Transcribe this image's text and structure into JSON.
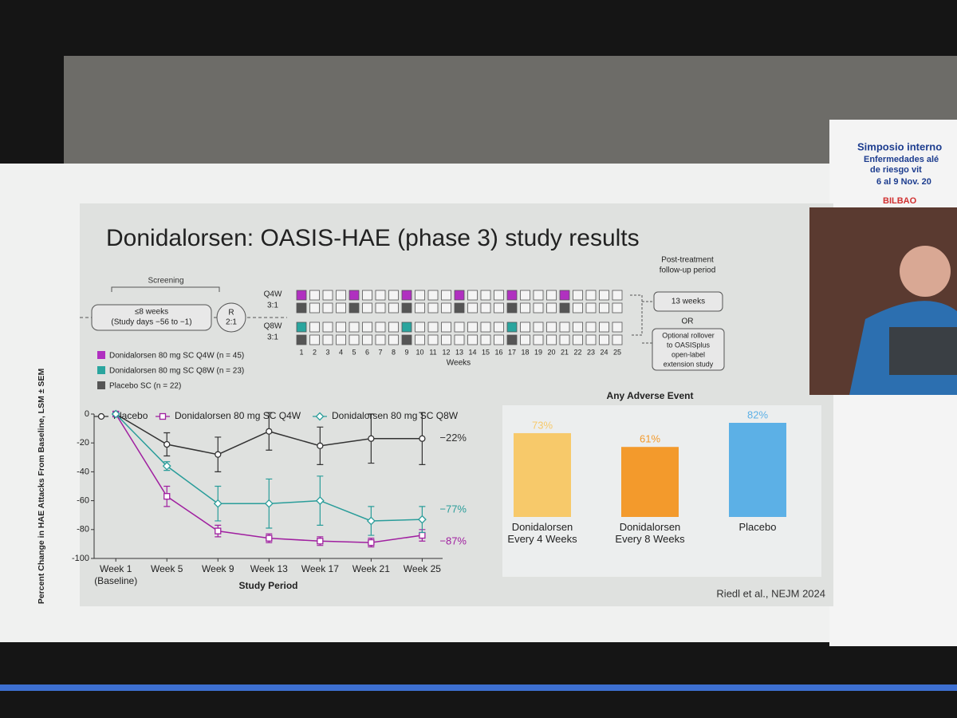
{
  "slide": {
    "title": "Donidalorsen: OASIS-HAE (phase 3) study results",
    "citation": "Riedl et al., NEJM 2024"
  },
  "venue": [
    "Simposio interno",
    "Enfermedades alé",
    "de riesgo vit",
    "6 al 9 Nov. 20",
    "BILBAO"
  ],
  "design": {
    "screening_label": "Screening",
    "screening_box": [
      "≤8 weeks",
      "(Study days −56 to −1)"
    ],
    "randomization": [
      "R",
      "2:1"
    ],
    "arms": [
      {
        "label": "Q4W",
        "ratio": "3:1",
        "active_color": "#b030c0",
        "dose_weeks": [
          1,
          5,
          9,
          13,
          17,
          21
        ]
      },
      {
        "label": "Q8W",
        "ratio": "3:1",
        "active_color": "#2aa59e",
        "dose_weeks": [
          1,
          9,
          17
        ]
      }
    ],
    "placebo_color": "#555555",
    "week_numbers": [
      1,
      2,
      3,
      4,
      5,
      6,
      7,
      8,
      9,
      10,
      11,
      12,
      13,
      14,
      15,
      16,
      17,
      18,
      19,
      20,
      21,
      22,
      23,
      24,
      25
    ],
    "weeks_label": "Weeks",
    "followup_label": [
      "Post-treatment",
      "follow-up period"
    ],
    "followup_box": "13 weeks",
    "or_label": "OR",
    "rollover_box": [
      "Optional rollover",
      "to OASISplus",
      "open-label",
      "extension study"
    ],
    "legend": [
      {
        "text": "Donidalorsen 80 mg SC Q4W (n = 45)",
        "color": "#b030c0"
      },
      {
        "text": "Donidalorsen 80 mg SC Q8W (n = 23)",
        "color": "#2aa59e"
      },
      {
        "text": "Placebo SC (n = 22)",
        "color": "#555555"
      }
    ]
  },
  "chart_data": [
    {
      "type": "line",
      "ylabel": "Percent Change in HAE Attacks From Baseline, LSM ± SEM",
      "xlabel": "Study Period",
      "x": [
        1,
        5,
        9,
        13,
        17,
        21,
        25
      ],
      "xlim": [
        -0.7,
        26.6
      ],
      "xticks": [
        {
          "value": 1,
          "label": "Week 1\n(Baseline)"
        },
        {
          "value": 5,
          "label": "Week 5"
        },
        {
          "value": 9,
          "label": "Week 9"
        },
        {
          "value": 13,
          "label": "Week 13"
        },
        {
          "value": 17,
          "label": "Week 17"
        },
        {
          "value": 21,
          "label": "Week 21"
        },
        {
          "value": 25,
          "label": "Week 25"
        }
      ],
      "ylim": [
        -100,
        0
      ],
      "yticks": [
        0,
        -20,
        -40,
        -60,
        -80,
        -100
      ],
      "series": [
        {
          "name": "Placebo",
          "color": "#333333",
          "marker": "circle",
          "values": [
            0,
            -21,
            -28,
            -12,
            -22,
            -17,
            -17
          ],
          "errors": [
            null,
            8,
            12,
            13,
            13,
            17,
            18
          ],
          "end_label": "−22%"
        },
        {
          "name": "Donidalorsen 80 mg SC Q4W",
          "color": "#a020a0",
          "marker": "square",
          "values": [
            0,
            -57,
            -81,
            -86,
            -88,
            -89,
            -84
          ],
          "errors": [
            null,
            7,
            4,
            3,
            3,
            3,
            4
          ],
          "end_label": "−87%"
        },
        {
          "name": "Donidalorsen 80 mg SC Q8W",
          "color": "#2a9d9a",
          "marker": "diamond",
          "values": [
            0,
            -36,
            -62,
            -62,
            -60,
            -74,
            -73
          ],
          "errors": [
            null,
            3,
            12,
            17,
            17,
            10,
            9
          ],
          "end_label": "−77%"
        }
      ]
    },
    {
      "type": "bar",
      "title": "Any Adverse Event",
      "categories": [
        "Donidalorsen\nEvery 4 Weeks",
        "Donidalorsen\nEvery 8 Weeks",
        "Placebo"
      ],
      "values": [
        73,
        61,
        82
      ],
      "value_labels": [
        "73%",
        "61%",
        "82%"
      ],
      "colors": [
        "#f7c96a",
        "#f39a2c",
        "#5cb0e6"
      ]
    }
  ]
}
